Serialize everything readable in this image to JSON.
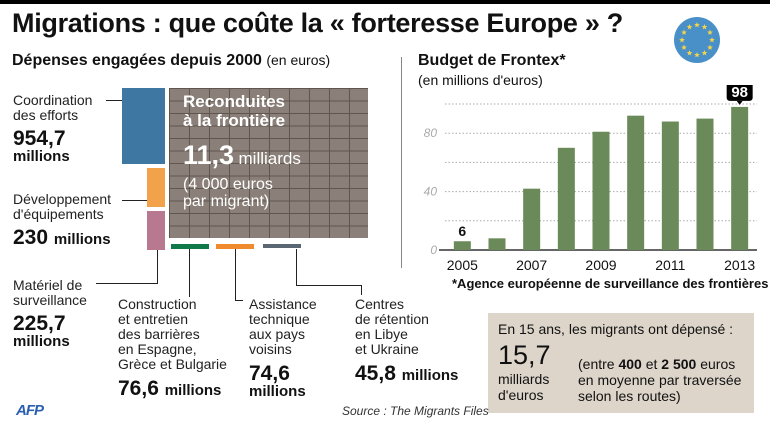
{
  "title": "Migrations : que coûte la « forteresse Europe » ?",
  "expenses": {
    "heading": "Dépenses engagées depuis 2000",
    "heading_unit": "(en euros)",
    "items": [
      {
        "label_lines": [
          "Coordination",
          "des efforts"
        ],
        "value": "954,7",
        "unit": "millions",
        "color": "#3f77a3"
      },
      {
        "label_lines": [
          "Développement",
          "d'équipements"
        ],
        "value": "230",
        "unit": "millions",
        "color": "#f3a24c"
      },
      {
        "label_lines": [
          "Matériel de",
          "surveillance"
        ],
        "value": "225,7",
        "unit": "millions",
        "color": "#b87890"
      },
      {
        "label_lines": [
          "Construction",
          "et entretien",
          "des barrières",
          "en Espagne,",
          "Grèce et Bulgarie"
        ],
        "value": "76,6",
        "unit": "millions",
        "color": "#107a4a"
      },
      {
        "label_lines": [
          "Assistance",
          "technique",
          "aux pays",
          "voisins"
        ],
        "value": "74,6",
        "unit": "millions",
        "color": "#ef8a2e"
      },
      {
        "label_lines": [
          "Centres",
          "de rétention",
          "en Libye",
          "et Ukraine"
        ],
        "value": "45,8",
        "unit": "millions",
        "color": "#5a6672"
      }
    ],
    "wall": {
      "label_lines": [
        "Reconduites",
        "à la frontière"
      ],
      "value": "11,3",
      "unit": "milliards",
      "note_lines": [
        "(4 000 euros",
        "par migrant)"
      ],
      "color": "#8b8079"
    }
  },
  "chart_data": {
    "type": "bar",
    "title": "Budget de Frontex*",
    "subtitle": "(en millions d'euros)",
    "xlabel": "",
    "ylabel": "",
    "categories": [
      "2005",
      "2006",
      "2007",
      "2008",
      "2009",
      "2010",
      "2011",
      "2012",
      "2013"
    ],
    "values": [
      6,
      8,
      42,
      70,
      81,
      92,
      88,
      90,
      98
    ],
    "x_tick_labels": [
      "2005",
      "2007",
      "2009",
      "2011",
      "2013"
    ],
    "y_tick_labels": [
      "0",
      "40",
      "80"
    ],
    "ylim": [
      0,
      100
    ],
    "grid": true,
    "gridlines": [
      20,
      40,
      60,
      80,
      100
    ],
    "annotations": [
      {
        "category": "2005",
        "text": "6"
      },
      {
        "category": "2013",
        "text": "98"
      }
    ],
    "bar_color": "#6b8a5a",
    "footnote": "*Agence européenne de surveillance des frontières"
  },
  "info_box": {
    "heading": "En 15 ans, les migrants ont dépensé :",
    "value": "15,7",
    "unit_lines": [
      "milliards",
      "d'euros"
    ],
    "detail_prefix": "(entre ",
    "detail_min": "400",
    "detail_mid": " et ",
    "detail_max": "2 500",
    "detail_suffix": " euros",
    "detail_lines": [
      "en moyenne par traversée",
      "selon les routes)"
    ]
  },
  "source": "Source : The Migrants Files",
  "logo": "AFP",
  "icons": {
    "eu_flag": "eu-flag-icon"
  },
  "colors": {
    "eu_blue": "#4a90c8",
    "eu_star": "#f5d44a"
  }
}
